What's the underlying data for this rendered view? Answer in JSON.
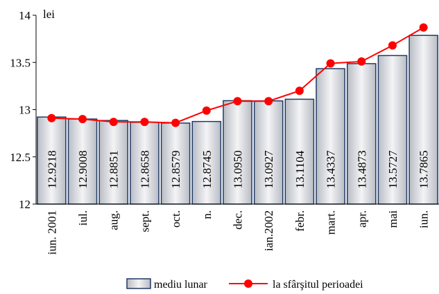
{
  "chart_data": {
    "type": "bar",
    "y_label": "lei",
    "categories": [
      "iun. 2001",
      "iul.",
      "aug.",
      "sept.",
      "oct.",
      "n.",
      "dec.",
      "ian.2002",
      "febr.",
      "mart.",
      "apr.",
      "mai",
      "iun."
    ],
    "series": [
      {
        "name": "mediu lunar",
        "type": "bar",
        "color": "#1f3864",
        "values": [
          12.9218,
          12.9008,
          12.8851,
          12.8658,
          12.8579,
          12.8745,
          13.095,
          13.0927,
          13.1104,
          13.4337,
          13.4873,
          13.5727,
          13.7865
        ],
        "value_labels": [
          "12.9218",
          "12.9008",
          "12.8851",
          "12.8658",
          "12.8579",
          "12.8745",
          "13.0950",
          "13.0927",
          "13.1104",
          "13.4337",
          "13.4873",
          "13.5727",
          "13.7865"
        ]
      },
      {
        "name": "la sfârşitul perioadei",
        "type": "line",
        "color": "#ff0000",
        "values": [
          12.91,
          12.9,
          12.87,
          12.87,
          12.86,
          12.99,
          13.09,
          13.09,
          13.2,
          13.49,
          13.51,
          13.68,
          13.87
        ]
      }
    ],
    "ylim": [
      12,
      14
    ],
    "yticks": [
      12,
      12.5,
      13,
      13.5,
      14
    ]
  }
}
